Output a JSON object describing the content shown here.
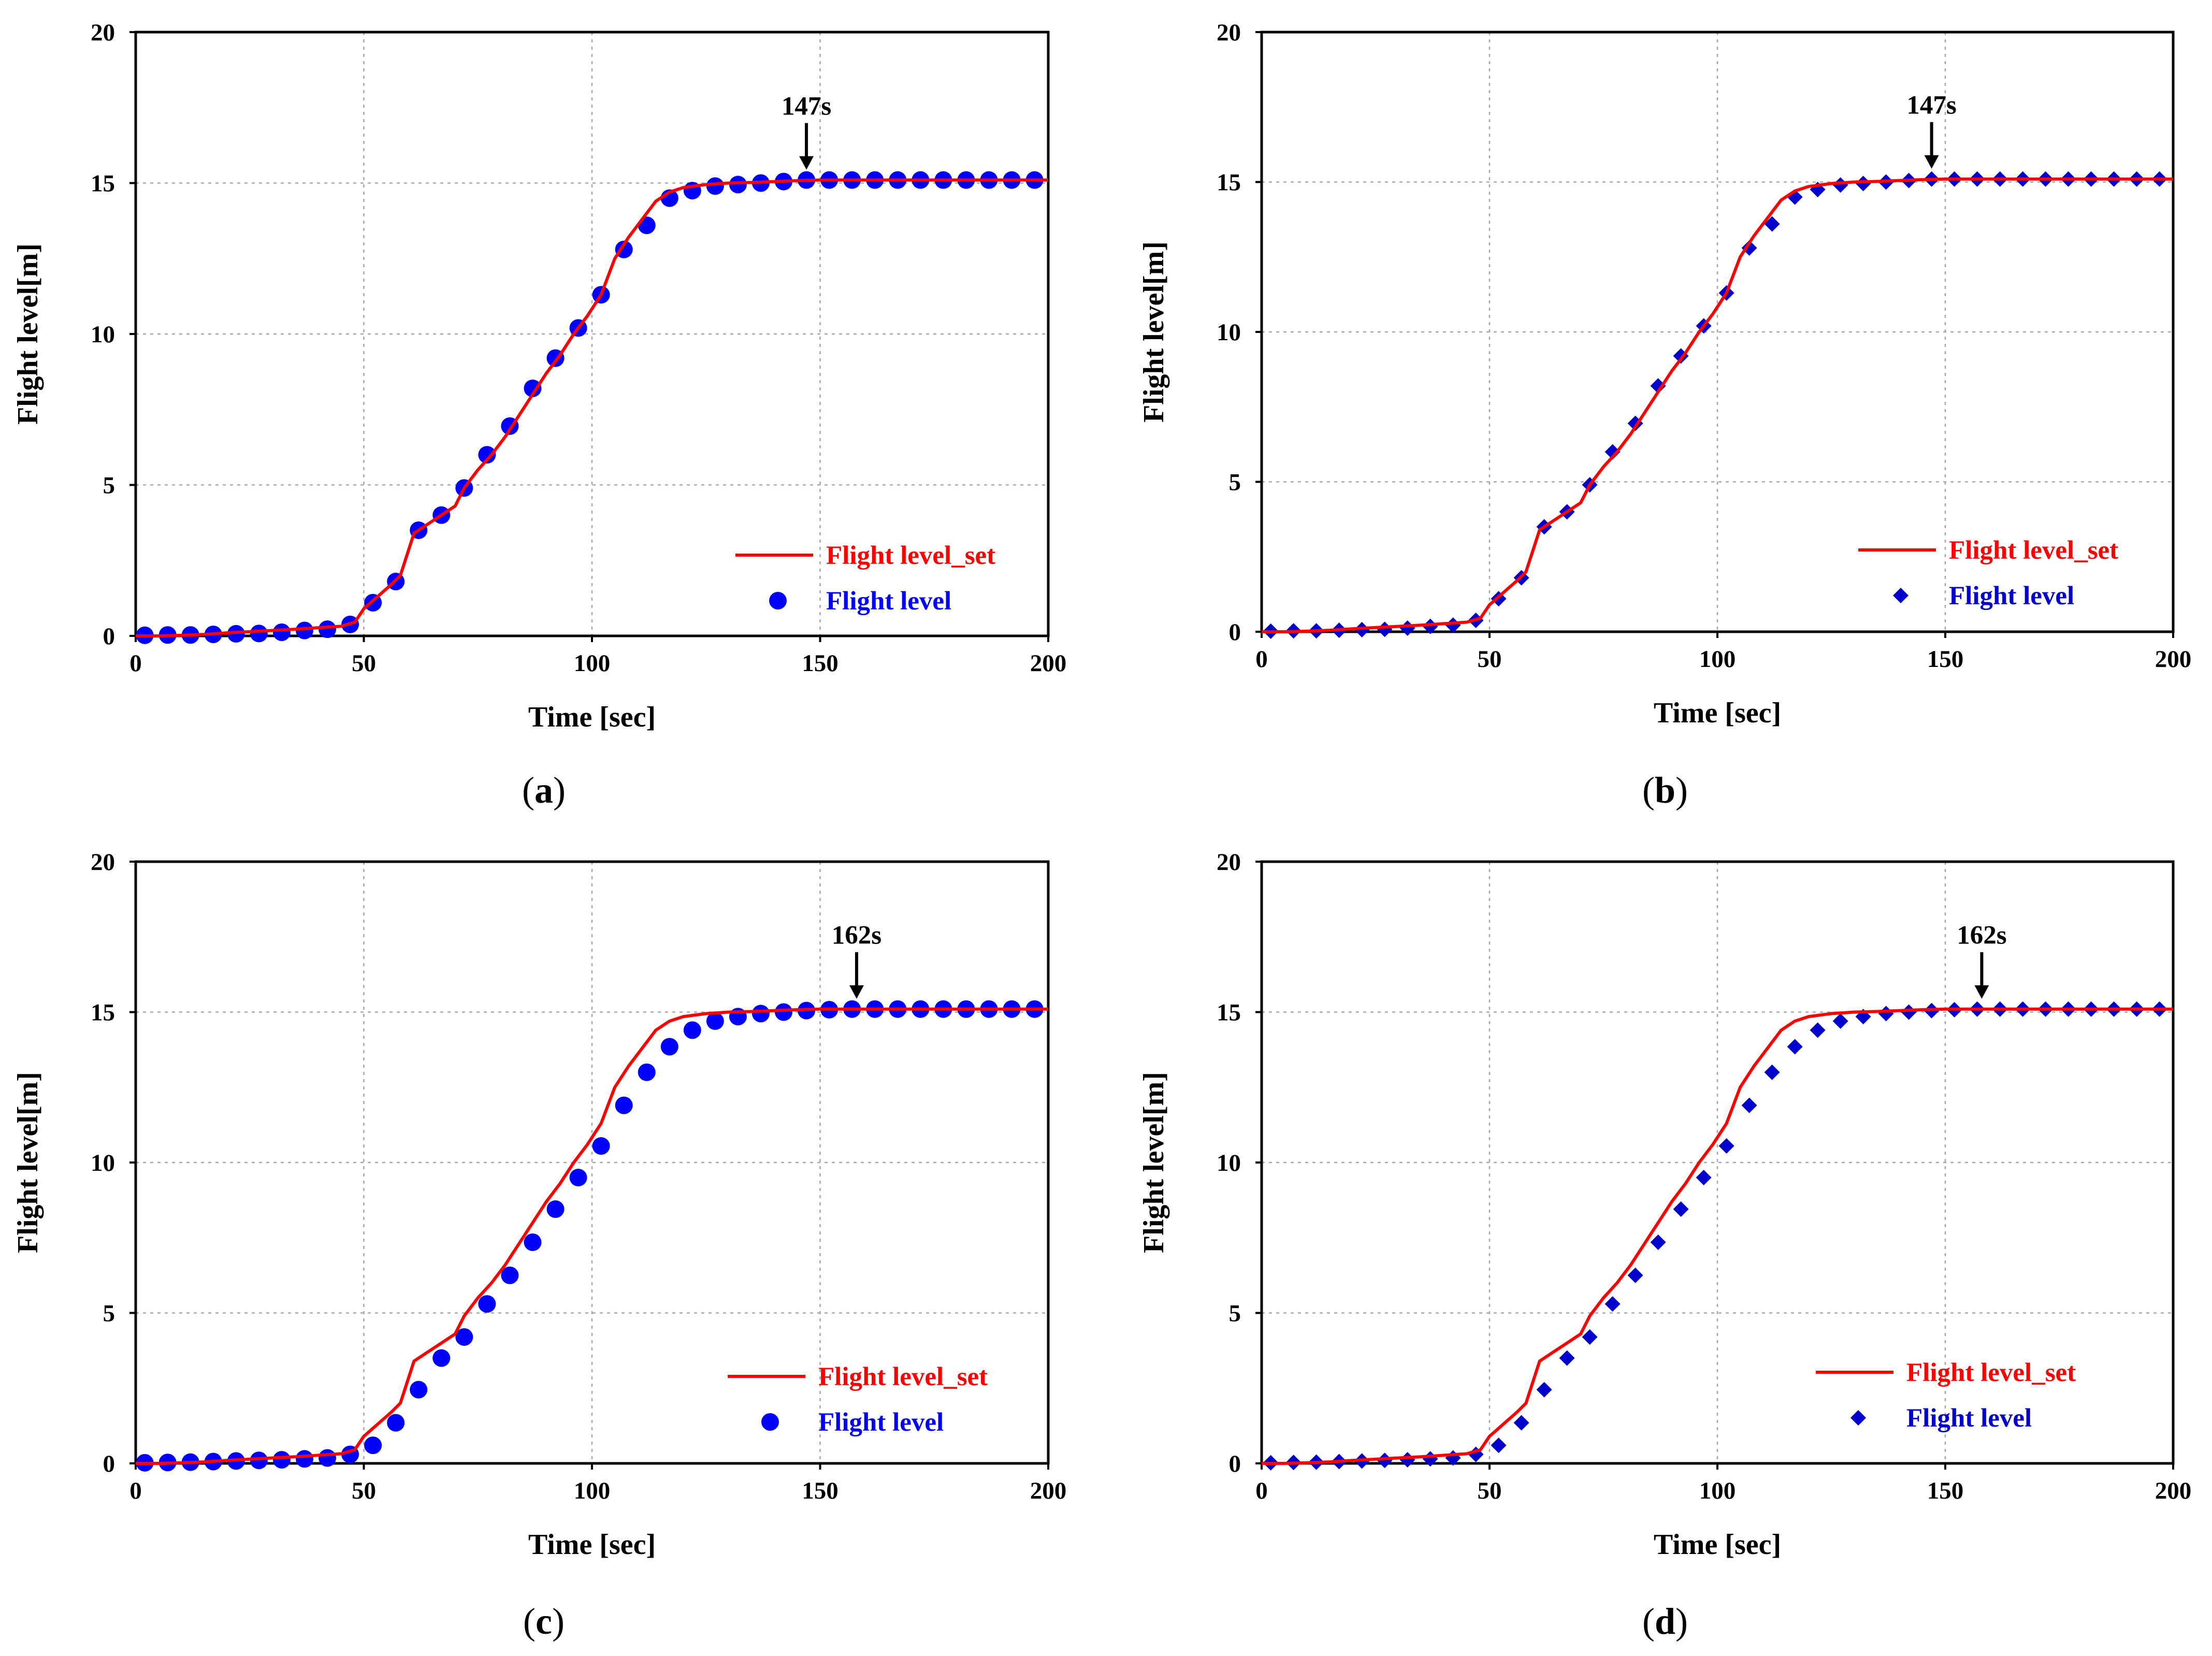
{
  "panel_labels": [
    "a",
    "b",
    "c",
    "d"
  ],
  "chart_data": [
    {
      "type": "line",
      "panel": "a",
      "xlabel": "Time [sec]",
      "ylabel": "Flight level[m]",
      "xlim": [
        0,
        200
      ],
      "ylim": [
        0,
        20
      ],
      "xticks": [
        0,
        50,
        100,
        150,
        200
      ],
      "yticks": [
        0,
        5,
        10,
        15,
        20
      ],
      "grid": true,
      "legend_position": "bottom-right",
      "marker": "circle",
      "annotation": {
        "label": "147s",
        "x": 147,
        "y": 15.1
      },
      "series": [
        {
          "name": "Flight level_set",
          "style": "line",
          "color": "#ff0000",
          "x": [
            0,
            5,
            10,
            15,
            20,
            25,
            30,
            35,
            40,
            45,
            48,
            50,
            53,
            56,
            58,
            61,
            64,
            67,
            70,
            72,
            75,
            78,
            81,
            84,
            87,
            90,
            93,
            96,
            99,
            102,
            105,
            108,
            111,
            114,
            117,
            120,
            125,
            130,
            135,
            140,
            145,
            150,
            155,
            160,
            165,
            170,
            175,
            180,
            185,
            190,
            195,
            200
          ],
          "y": [
            0,
            0,
            0.02,
            0.05,
            0.1,
            0.14,
            0.18,
            0.22,
            0.27,
            0.32,
            0.45,
            0.9,
            1.3,
            1.7,
            2.0,
            3.4,
            3.7,
            4.0,
            4.3,
            4.9,
            5.5,
            6.0,
            6.6,
            7.3,
            8.0,
            8.7,
            9.3,
            10.0,
            10.6,
            11.3,
            12.5,
            13.2,
            13.8,
            14.4,
            14.7,
            14.85,
            14.95,
            15.0,
            15.02,
            15.05,
            15.08,
            15.1,
            15.1,
            15.1,
            15.1,
            15.1,
            15.1,
            15.1,
            15.1,
            15.1,
            15.1,
            15.1
          ]
        },
        {
          "name": "Flight level",
          "style": "marker",
          "color": "#0000ff",
          "x": [
            2,
            7,
            12,
            17,
            22,
            27,
            32,
            37,
            42,
            47,
            52,
            57,
            62,
            67,
            72,
            77,
            82,
            87,
            92,
            97,
            102,
            107,
            112,
            117,
            122,
            127,
            132,
            137,
            142,
            147,
            152,
            157,
            162,
            167,
            172,
            177,
            182,
            187,
            192,
            197
          ],
          "y": [
            0.02,
            0.03,
            0.03,
            0.05,
            0.07,
            0.08,
            0.12,
            0.18,
            0.22,
            0.38,
            1.1,
            1.8,
            3.5,
            4.0,
            4.9,
            6.0,
            6.95,
            8.2,
            9.2,
            10.2,
            11.3,
            12.8,
            13.6,
            14.5,
            14.75,
            14.9,
            14.95,
            15.0,
            15.05,
            15.1,
            15.1,
            15.1,
            15.1,
            15.1,
            15.1,
            15.1,
            15.1,
            15.1,
            15.1,
            15.1
          ]
        }
      ]
    },
    {
      "type": "line",
      "panel": "b",
      "xlabel": "Time [sec]",
      "ylabel": "Flight level[m]",
      "xlim": [
        0,
        200
      ],
      "ylim": [
        0,
        20
      ],
      "xticks": [
        0,
        50,
        100,
        150,
        200
      ],
      "yticks": [
        0,
        5,
        10,
        15,
        20
      ],
      "grid": true,
      "legend_position": "bottom-right",
      "marker": "diamond",
      "annotation": {
        "label": "147s",
        "x": 147,
        "y": 15.1
      },
      "series": [
        {
          "name": "Flight level_set",
          "style": "line",
          "color": "#ff0000",
          "x": [
            0,
            5,
            10,
            15,
            20,
            25,
            30,
            35,
            40,
            45,
            48,
            50,
            53,
            56,
            58,
            61,
            64,
            67,
            70,
            72,
            75,
            78,
            81,
            84,
            87,
            90,
            93,
            96,
            99,
            102,
            105,
            108,
            111,
            114,
            117,
            120,
            125,
            130,
            135,
            140,
            145,
            150,
            155,
            160,
            165,
            170,
            175,
            180,
            185,
            190,
            195,
            200
          ],
          "y": [
            0,
            0,
            0.02,
            0.05,
            0.1,
            0.14,
            0.18,
            0.22,
            0.27,
            0.32,
            0.45,
            0.9,
            1.3,
            1.7,
            2.0,
            3.4,
            3.7,
            4.0,
            4.3,
            4.9,
            5.5,
            6.0,
            6.6,
            7.3,
            8.0,
            8.7,
            9.3,
            10.0,
            10.6,
            11.3,
            12.5,
            13.2,
            13.8,
            14.4,
            14.7,
            14.85,
            14.95,
            15.0,
            15.02,
            15.05,
            15.08,
            15.1,
            15.1,
            15.1,
            15.1,
            15.1,
            15.1,
            15.1,
            15.1,
            15.1,
            15.1,
            15.1
          ]
        },
        {
          "name": "Flight level",
          "style": "marker",
          "color": "#0000cd",
          "x": [
            2,
            7,
            12,
            17,
            22,
            27,
            32,
            37,
            42,
            47,
            52,
            57,
            62,
            67,
            72,
            77,
            82,
            87,
            92,
            97,
            102,
            107,
            112,
            117,
            122,
            127,
            132,
            137,
            142,
            147,
            152,
            157,
            162,
            167,
            172,
            177,
            182,
            187,
            192,
            197
          ],
          "y": [
            0.02,
            0.03,
            0.03,
            0.05,
            0.07,
            0.08,
            0.12,
            0.18,
            0.22,
            0.38,
            1.1,
            1.8,
            3.5,
            4.0,
            4.9,
            6.0,
            6.95,
            8.2,
            9.2,
            10.2,
            11.3,
            12.8,
            13.6,
            14.5,
            14.75,
            14.9,
            14.95,
            15.0,
            15.05,
            15.1,
            15.1,
            15.1,
            15.1,
            15.1,
            15.1,
            15.1,
            15.1,
            15.1,
            15.1,
            15.1
          ]
        }
      ]
    },
    {
      "type": "line",
      "panel": "c",
      "xlabel": "Time [sec]",
      "ylabel": "Flight level[m]",
      "xlim": [
        0,
        200
      ],
      "ylim": [
        0,
        20
      ],
      "xticks": [
        0,
        50,
        100,
        150,
        200
      ],
      "yticks": [
        0,
        5,
        10,
        15,
        20
      ],
      "grid": true,
      "legend_position": "bottom-right",
      "marker": "circle",
      "annotation": {
        "label": "162s",
        "x": 158,
        "y": 15.1
      },
      "series": [
        {
          "name": "Flight level_set",
          "style": "line",
          "color": "#ff0000",
          "x": [
            0,
            5,
            10,
            15,
            20,
            25,
            30,
            35,
            40,
            45,
            48,
            50,
            53,
            56,
            58,
            61,
            64,
            67,
            70,
            72,
            75,
            78,
            81,
            84,
            87,
            90,
            93,
            96,
            99,
            102,
            105,
            108,
            111,
            114,
            117,
            120,
            125,
            130,
            135,
            140,
            145,
            150,
            155,
            160,
            165,
            170,
            175,
            180,
            185,
            190,
            195,
            200
          ],
          "y": [
            0,
            0,
            0.02,
            0.05,
            0.1,
            0.14,
            0.18,
            0.22,
            0.27,
            0.32,
            0.45,
            0.9,
            1.3,
            1.7,
            2.0,
            3.4,
            3.7,
            4.0,
            4.3,
            4.9,
            5.5,
            6.0,
            6.6,
            7.3,
            8.0,
            8.7,
            9.3,
            10.0,
            10.6,
            11.3,
            12.5,
            13.2,
            13.8,
            14.4,
            14.7,
            14.85,
            14.95,
            15.0,
            15.02,
            15.05,
            15.08,
            15.1,
            15.1,
            15.1,
            15.1,
            15.1,
            15.1,
            15.1,
            15.1,
            15.1,
            15.1,
            15.1
          ]
        },
        {
          "name": "Flight level",
          "style": "marker",
          "color": "#0000ff",
          "x": [
            2,
            7,
            12,
            17,
            22,
            27,
            32,
            37,
            42,
            47,
            52,
            57,
            62,
            67,
            72,
            77,
            82,
            87,
            92,
            97,
            102,
            107,
            112,
            117,
            122,
            127,
            132,
            137,
            142,
            147,
            152,
            157,
            162,
            167,
            172,
            177,
            182,
            187,
            192,
            197
          ],
          "y": [
            0.02,
            0.03,
            0.04,
            0.06,
            0.08,
            0.1,
            0.12,
            0.15,
            0.18,
            0.3,
            0.6,
            1.35,
            2.45,
            3.5,
            4.2,
            5.3,
            6.25,
            7.35,
            8.45,
            9.5,
            10.55,
            11.9,
            13.0,
            13.85,
            14.4,
            14.7,
            14.85,
            14.95,
            15.0,
            15.05,
            15.08,
            15.1,
            15.1,
            15.1,
            15.1,
            15.1,
            15.1,
            15.1,
            15.1,
            15.1
          ]
        }
      ]
    },
    {
      "type": "line",
      "panel": "d",
      "xlabel": "Time [sec]",
      "ylabel": "Flight level[m]",
      "xlim": [
        0,
        200
      ],
      "ylim": [
        0,
        20
      ],
      "xticks": [
        0,
        50,
        100,
        150,
        200
      ],
      "yticks": [
        0,
        5,
        10,
        15,
        20
      ],
      "grid": true,
      "legend_position": "bottom-right",
      "marker": "diamond",
      "annotation": {
        "label": "162s",
        "x": 158,
        "y": 15.1
      },
      "series": [
        {
          "name": "Flight level_set",
          "style": "line",
          "color": "#ff0000",
          "x": [
            0,
            5,
            10,
            15,
            20,
            25,
            30,
            35,
            40,
            45,
            48,
            50,
            53,
            56,
            58,
            61,
            64,
            67,
            70,
            72,
            75,
            78,
            81,
            84,
            87,
            90,
            93,
            96,
            99,
            102,
            105,
            108,
            111,
            114,
            117,
            120,
            125,
            130,
            135,
            140,
            145,
            150,
            155,
            160,
            165,
            170,
            175,
            180,
            185,
            190,
            195,
            200
          ],
          "y": [
            0,
            0,
            0.02,
            0.05,
            0.1,
            0.14,
            0.18,
            0.22,
            0.27,
            0.32,
            0.45,
            0.9,
            1.3,
            1.7,
            2.0,
            3.4,
            3.7,
            4.0,
            4.3,
            4.9,
            5.5,
            6.0,
            6.6,
            7.3,
            8.0,
            8.7,
            9.3,
            10.0,
            10.6,
            11.3,
            12.5,
            13.2,
            13.8,
            14.4,
            14.7,
            14.85,
            14.95,
            15.0,
            15.02,
            15.05,
            15.08,
            15.1,
            15.1,
            15.1,
            15.1,
            15.1,
            15.1,
            15.1,
            15.1,
            15.1,
            15.1,
            15.1
          ]
        },
        {
          "name": "Flight level",
          "style": "marker",
          "color": "#0000cd",
          "x": [
            2,
            7,
            12,
            17,
            22,
            27,
            32,
            37,
            42,
            47,
            52,
            57,
            62,
            67,
            72,
            77,
            82,
            87,
            92,
            97,
            102,
            107,
            112,
            117,
            122,
            127,
            132,
            137,
            142,
            147,
            152,
            157,
            162,
            167,
            172,
            177,
            182,
            187,
            192,
            197
          ],
          "y": [
            0.02,
            0.03,
            0.04,
            0.06,
            0.08,
            0.1,
            0.12,
            0.15,
            0.18,
            0.3,
            0.6,
            1.35,
            2.45,
            3.5,
            4.2,
            5.3,
            6.25,
            7.35,
            8.45,
            9.5,
            10.55,
            11.9,
            13.0,
            13.85,
            14.4,
            14.7,
            14.85,
            14.95,
            15.0,
            15.05,
            15.08,
            15.1,
            15.1,
            15.1,
            15.1,
            15.1,
            15.1,
            15.1,
            15.1,
            15.1
          ]
        }
      ]
    }
  ]
}
